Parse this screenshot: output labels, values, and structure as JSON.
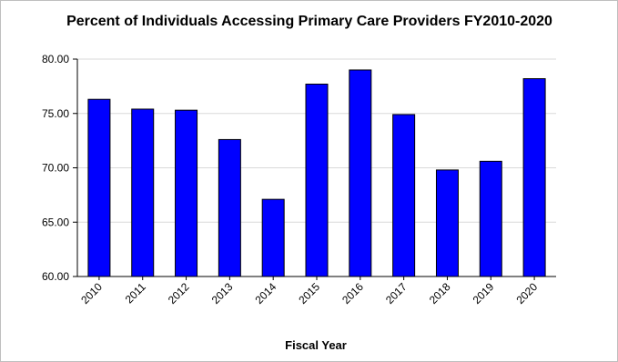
{
  "chart_data": {
    "type": "bar",
    "title": "Percent of Individuals Accessing Primary Care Providers FY2010-2020",
    "xlabel": "Fiscal Year",
    "ylabel": "",
    "categories": [
      "2010",
      "2011",
      "2012",
      "2013",
      "2014",
      "2015",
      "2016",
      "2017",
      "2018",
      "2019",
      "2020"
    ],
    "values": [
      76.3,
      75.4,
      75.3,
      72.6,
      67.1,
      77.7,
      79.0,
      74.9,
      69.8,
      70.6,
      78.2
    ],
    "ylim": [
      60,
      80
    ],
    "yticks": [
      "60.00",
      "65.00",
      "70.00",
      "75.00",
      "80.00"
    ],
    "grid": true,
    "legend": "none",
    "bar_color": "#0000ff",
    "bar_stroke": "#000000"
  }
}
